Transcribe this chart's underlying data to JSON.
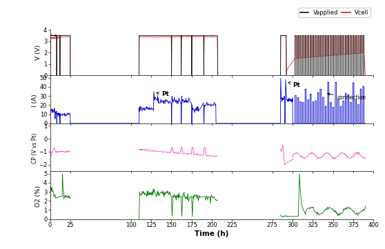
{
  "xlim": [
    0,
    400
  ],
  "xticks": [
    0,
    25,
    100,
    125,
    150,
    175,
    200,
    225,
    275,
    300,
    325,
    350,
    375,
    400
  ],
  "xlabel": "Time (h)",
  "V_ylim": [
    0,
    4
  ],
  "V_yticks": [
    0,
    1,
    2,
    3,
    4
  ],
  "V_ylabel": "V (V)",
  "I_ylim": [
    0,
    50
  ],
  "I_yticks": [
    0,
    10,
    20,
    30,
    40,
    50
  ],
  "I_ylabel": "I (A)",
  "CP_ylim": [
    -2.5,
    1
  ],
  "CP_yticks": [
    -2,
    -1,
    0,
    1
  ],
  "CP_ylabel": "CP (V vs Pt)",
  "O2_ylim": [
    0,
    5
  ],
  "O2_yticks": [
    0,
    1,
    2,
    3,
    4,
    5
  ],
  "O2_ylabel": "O2 (%)",
  "legend_labels": [
    "Vapplied",
    "Vcell"
  ],
  "legend_colors": [
    "#111111",
    "#dd1111"
  ],
  "black_color": "#111111",
  "red_color": "#dd1111",
  "blue_color": "#0000cc",
  "magenta_color": "#ff44bb",
  "green_color": "#007700"
}
